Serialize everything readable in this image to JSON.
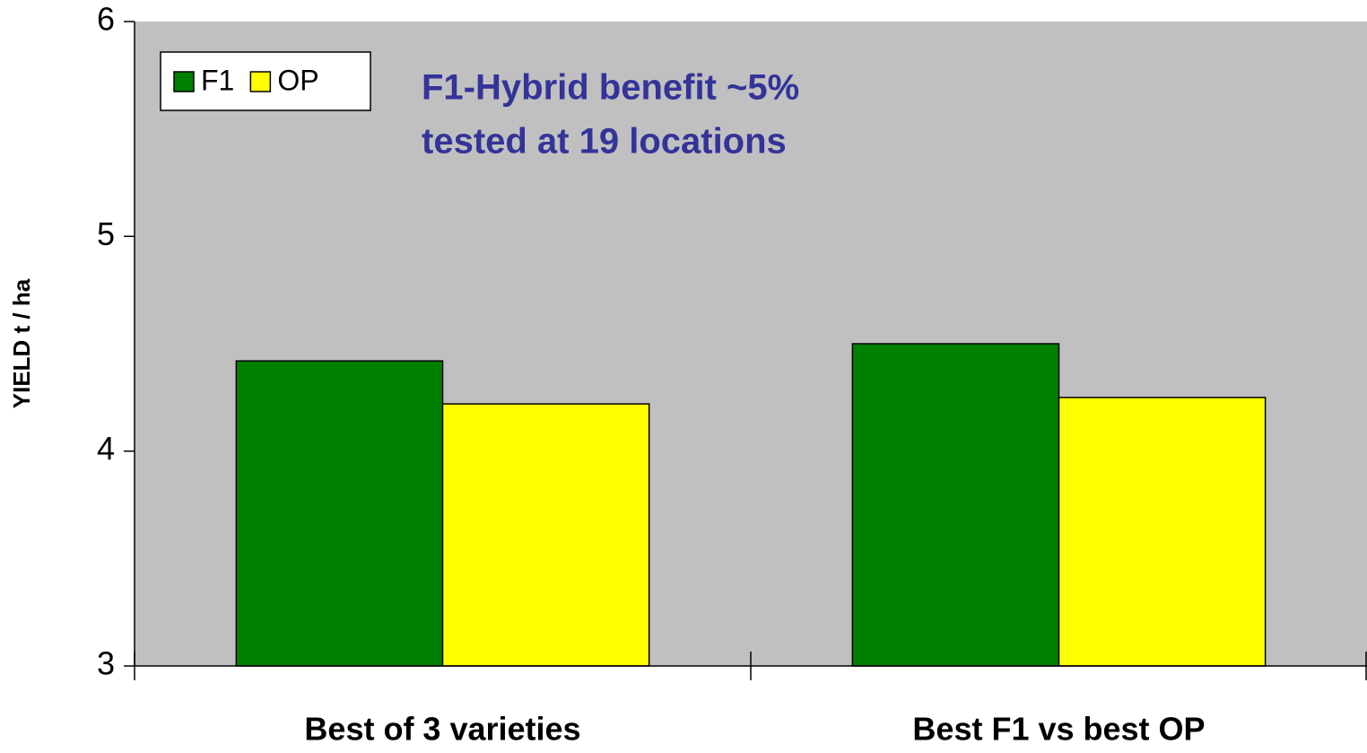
{
  "chart_data": {
    "type": "bar",
    "y_label": "YIELD t / ha",
    "annotations": [
      "F1-Hybrid benefit ~5%",
      "tested at 19 locations"
    ],
    "categories": [
      "Best of 3 varieties",
      "Best F1 vs best OP"
    ],
    "series": [
      {
        "name": "F1",
        "color": "#008000",
        "values": [
          4.42,
          4.5
        ]
      },
      {
        "name": "OP",
        "color": "#ffff00",
        "values": [
          4.22,
          4.25
        ]
      }
    ],
    "ylim": [
      3,
      6
    ],
    "yticks": [
      3,
      4,
      5,
      6
    ],
    "plot_background": "#c0c0c0",
    "legend": "top-left"
  }
}
